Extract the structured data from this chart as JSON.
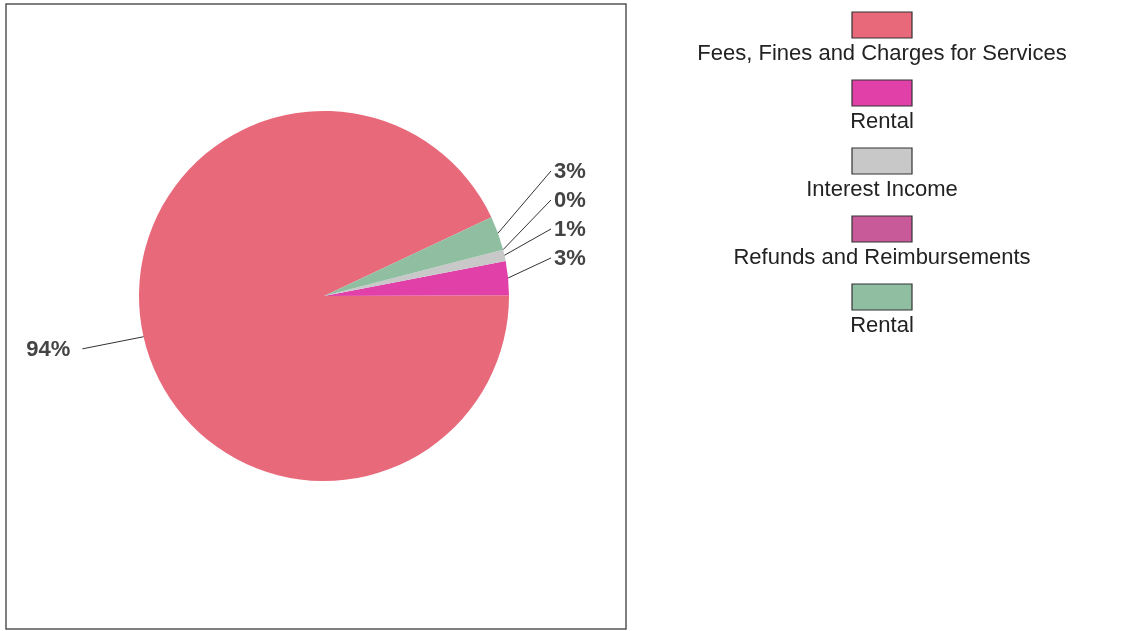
{
  "chart_data": {
    "type": "pie",
    "categories": [
      "Fees, Fines and Charges for Services",
      "Rental",
      "Interest Income",
      "Refunds and Reimbursements",
      "Rental"
    ],
    "values": [
      94,
      3,
      1,
      0,
      3
    ],
    "colors": [
      "#e8697a",
      "#e040a8",
      "#c8c8c8",
      "#c85a9a",
      "#8fbfa0"
    ],
    "value_labels": [
      "94%",
      "3%",
      "1%",
      "0%",
      "3%"
    ],
    "legend": "right"
  }
}
